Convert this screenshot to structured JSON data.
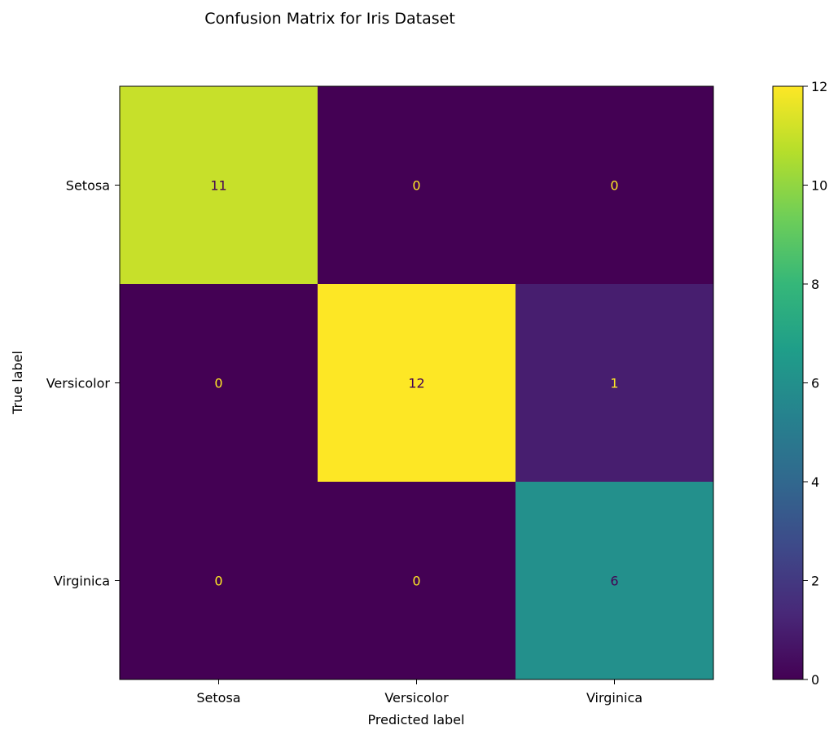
{
  "chart_data": {
    "type": "heatmap",
    "title": "Confusion Matrix for Iris Dataset",
    "xlabel": "Predicted label",
    "ylabel": "True label",
    "x_categories": [
      "Setosa",
      "Versicolor",
      "Virginica"
    ],
    "y_categories": [
      "Setosa",
      "Versicolor",
      "Virginica"
    ],
    "values": [
      [
        11,
        0,
        0
      ],
      [
        0,
        12,
        1
      ],
      [
        0,
        0,
        6
      ]
    ],
    "colormap": "viridis",
    "colorbar": {
      "range": [
        0,
        12
      ],
      "ticks": [
        0,
        2,
        4,
        6,
        8,
        10,
        12
      ]
    },
    "text_colors": {
      "on_dark": "#fde725",
      "on_light": "#440154"
    },
    "grid": false,
    "legend": "colorbar-right"
  }
}
